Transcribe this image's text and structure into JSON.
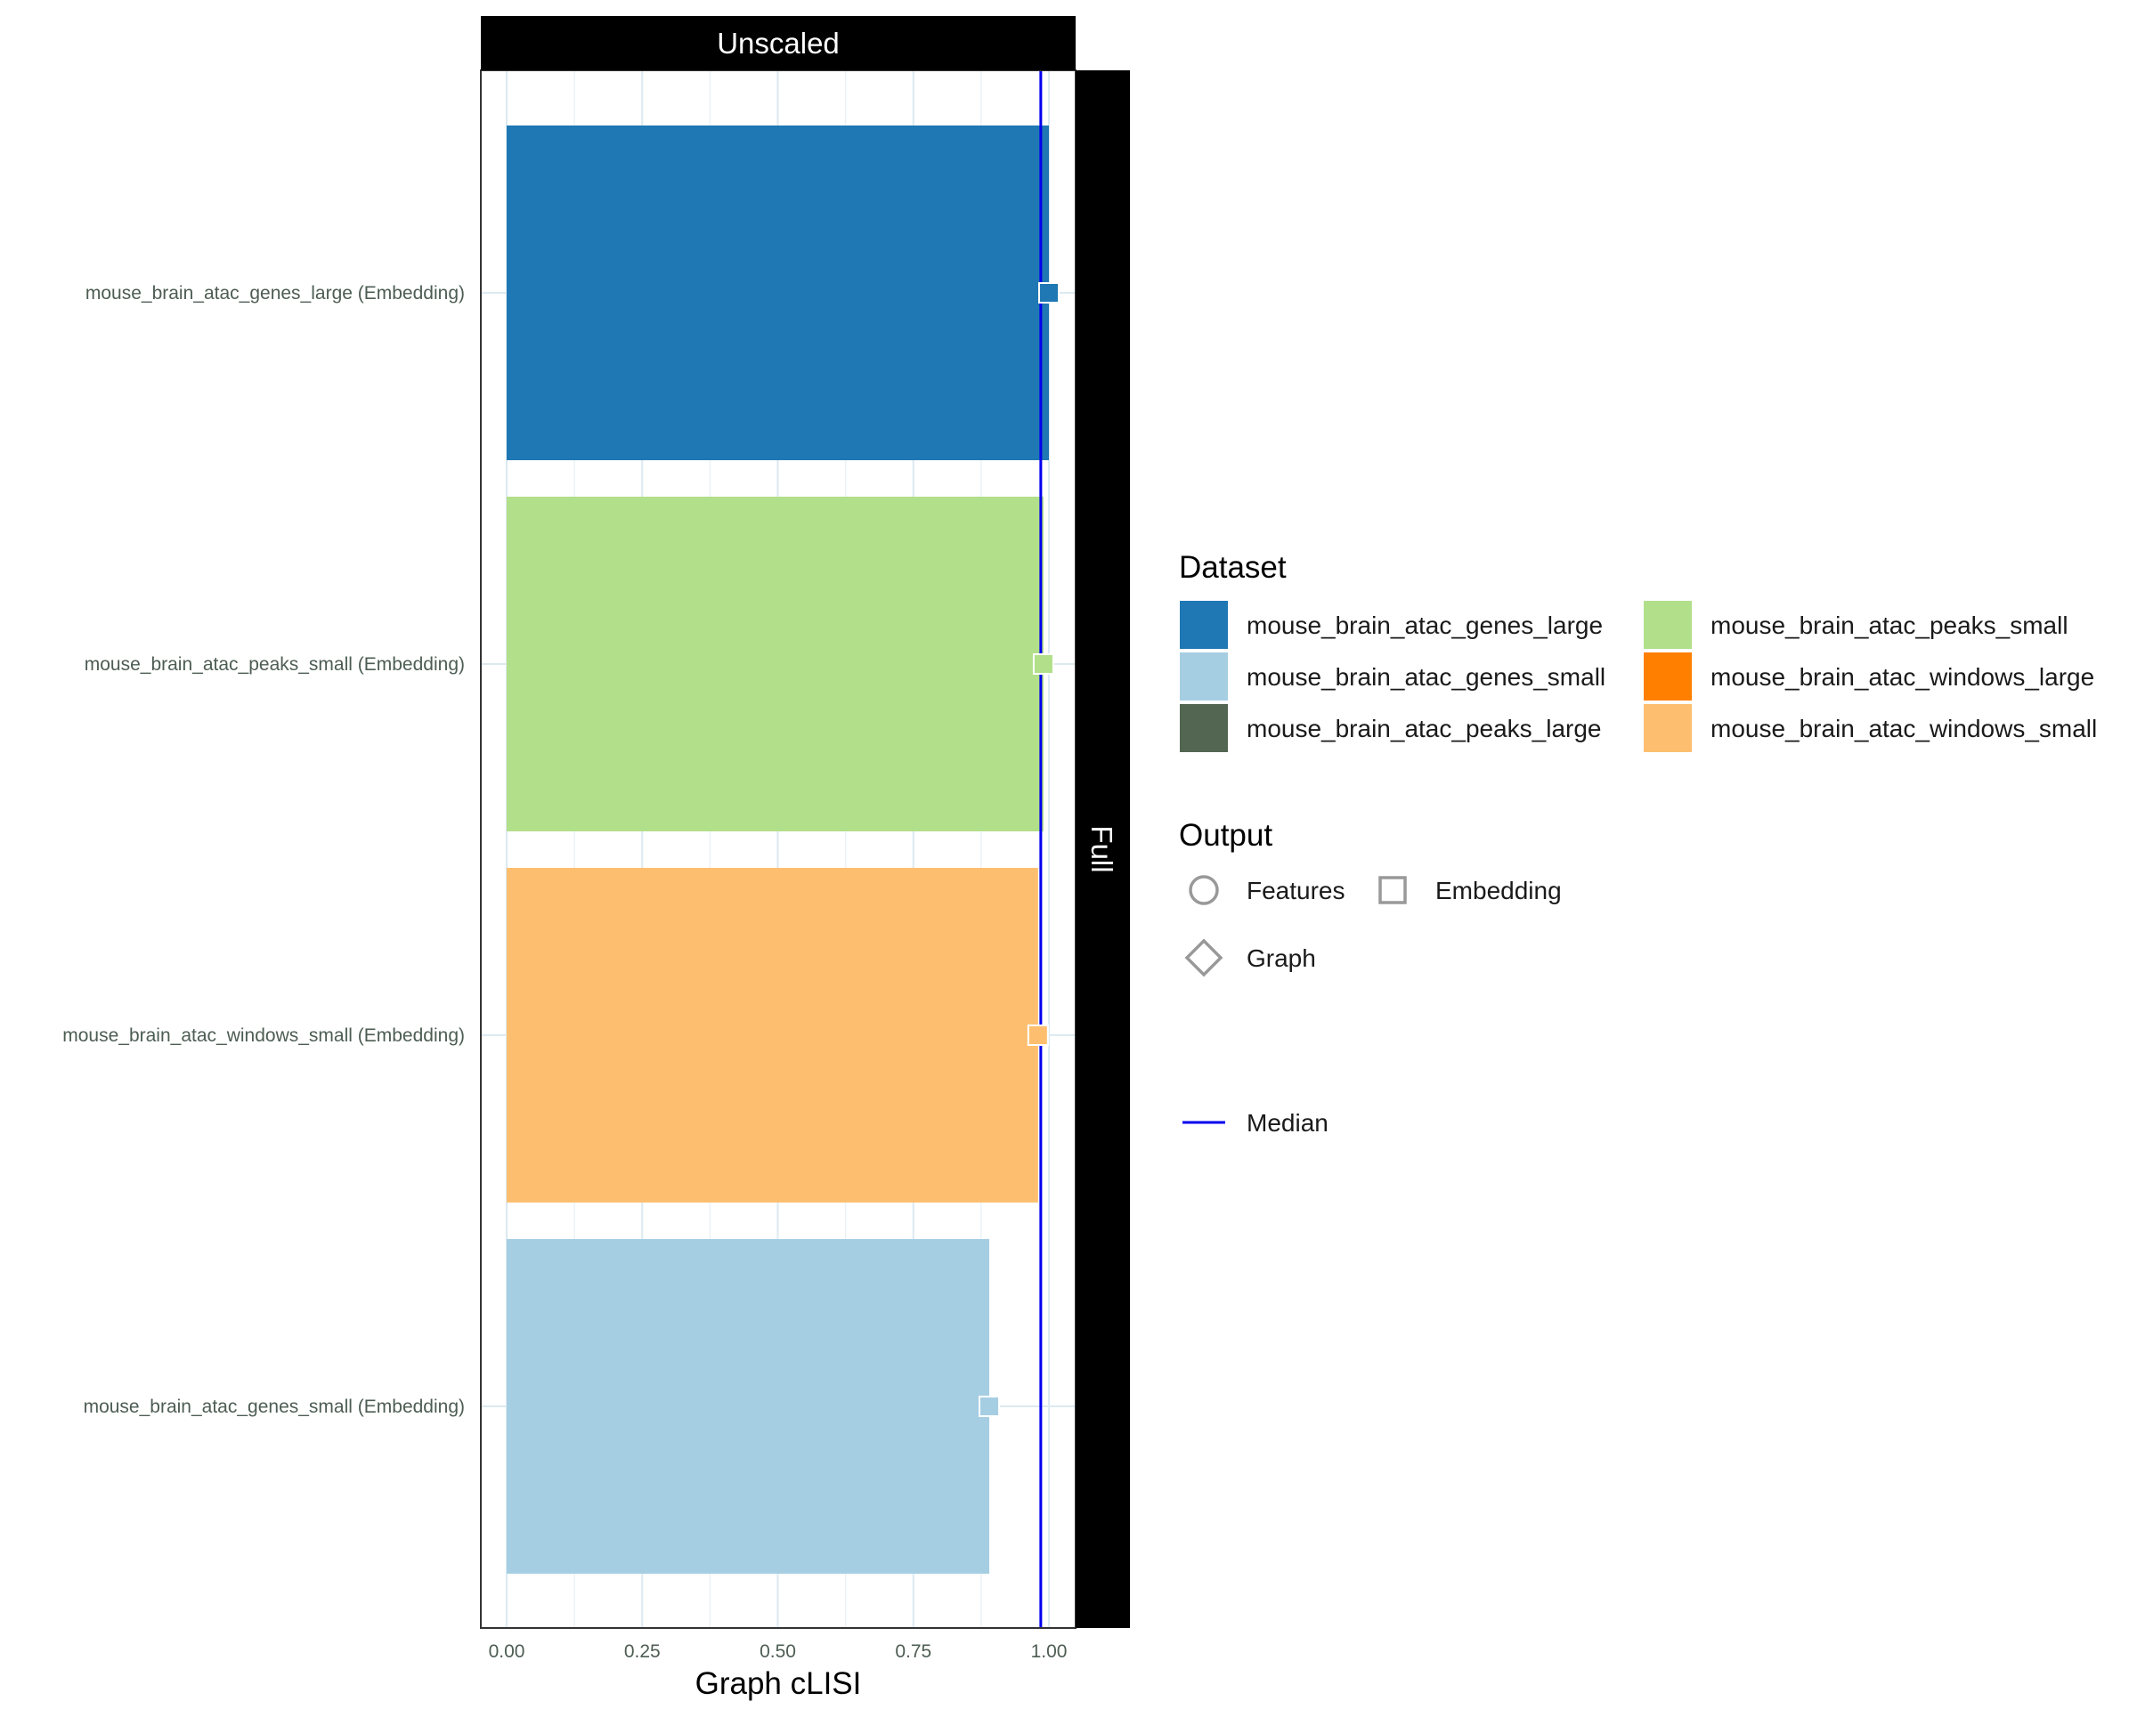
{
  "chart_data": {
    "type": "bar",
    "orientation": "horizontal",
    "facet_column": "Unscaled",
    "facet_row": "Full",
    "xlabel": "Graph cLISI",
    "ylabel": "",
    "xlim": [
      0,
      1.05
    ],
    "x_ticks": [
      "0.00",
      "0.25",
      "0.50",
      "0.75",
      "1.00"
    ],
    "x_tick_values": [
      0,
      0.25,
      0.5,
      0.75,
      1.0
    ],
    "grid": true,
    "median": 0.985,
    "categories": [
      "mouse_brain_atac_genes_large (Embedding)",
      "mouse_brain_atac_peaks_small (Embedding)",
      "mouse_brain_atac_windows_small (Embedding)",
      "mouse_brain_atac_genes_small (Embedding)"
    ],
    "values": [
      1.0,
      0.99,
      0.98,
      0.89
    ],
    "bar_datasets": [
      "mouse_brain_atac_genes_large",
      "mouse_brain_atac_peaks_small",
      "mouse_brain_atac_windows_small",
      "mouse_brain_atac_genes_small"
    ],
    "legend_placement": "right",
    "legend": {
      "dataset_title": "Dataset",
      "datasets": [
        {
          "name": "mouse_brain_atac_genes_large",
          "color": "#1f78b4"
        },
        {
          "name": "mouse_brain_atac_genes_small",
          "color": "#a6cee3"
        },
        {
          "name": "mouse_brain_atac_peaks_large",
          "color": "#536652"
        },
        {
          "name": "mouse_brain_atac_peaks_small",
          "color": "#b2df8a"
        },
        {
          "name": "mouse_brain_atac_windows_large",
          "color": "#ff7f00"
        },
        {
          "name": "mouse_brain_atac_windows_small",
          "color": "#fdbf6f"
        }
      ],
      "output_title": "Output",
      "outputs": [
        {
          "name": "Features",
          "shape": "circle"
        },
        {
          "name": "Embedding",
          "shape": "square"
        },
        {
          "name": "Graph",
          "shape": "diamond"
        }
      ],
      "median_label": "Median",
      "median_color": "#0000ee"
    }
  }
}
